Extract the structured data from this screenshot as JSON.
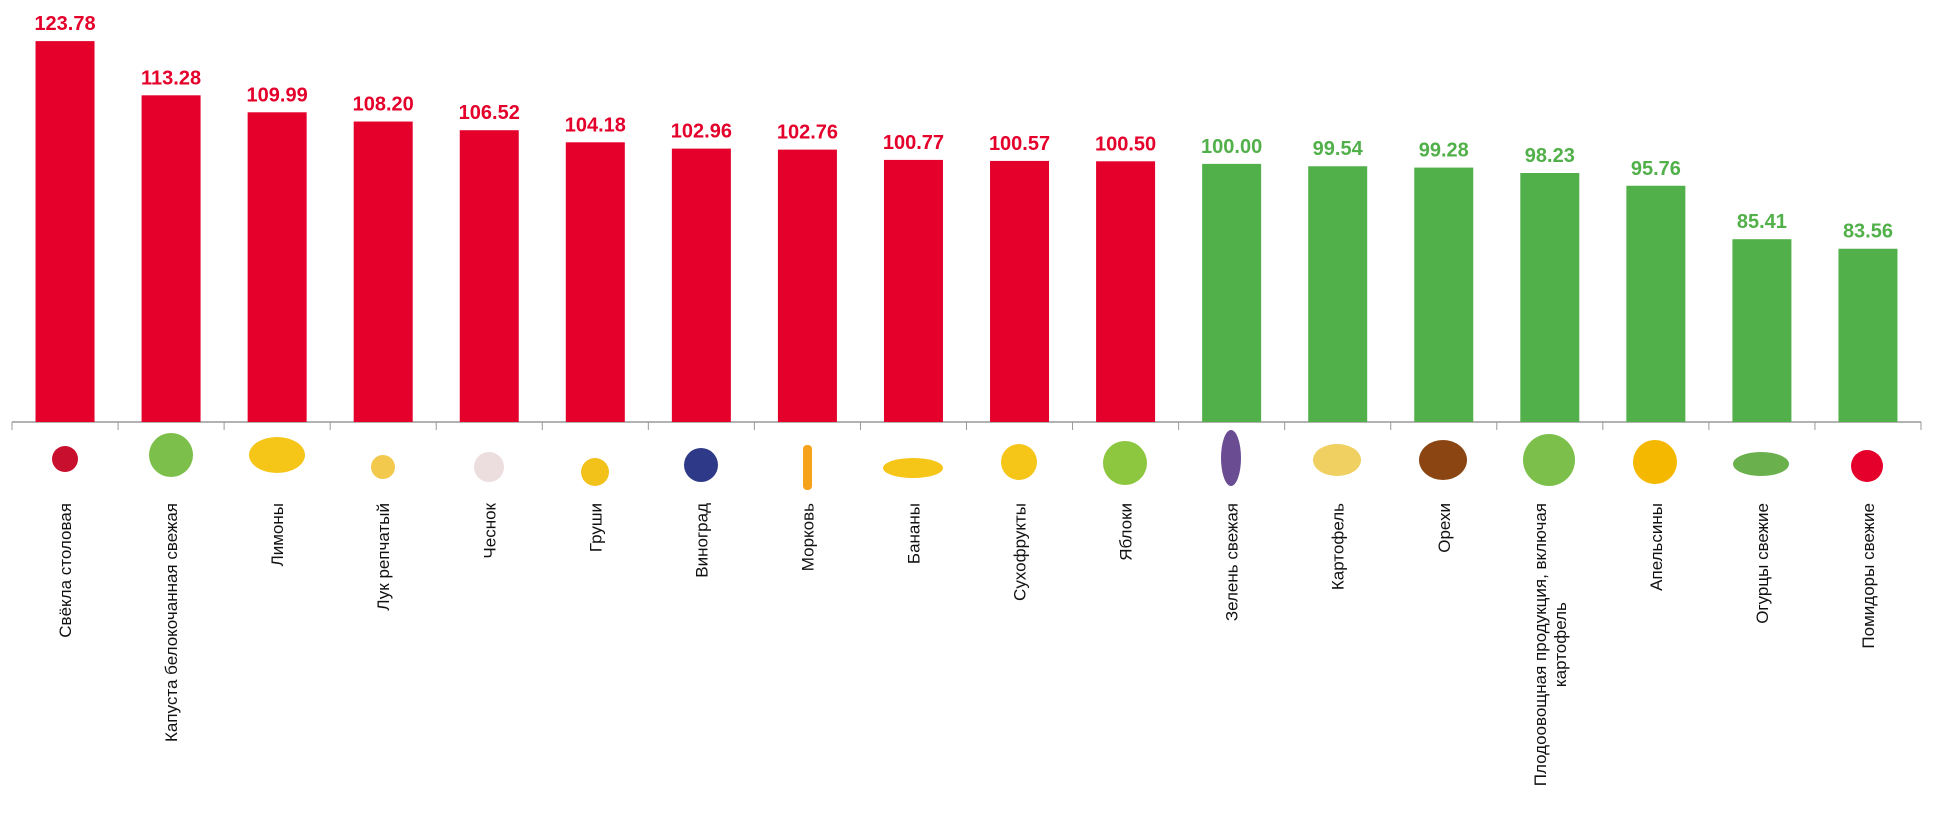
{
  "chart_data": {
    "type": "bar",
    "categories": [
      "Свёкла столовая",
      "Капуста белокочанная свежая",
      "Лимоны",
      "Лук репчатый",
      "Чеснок",
      "Груши",
      "Виноград",
      "Морковь",
      "Бананы",
      "Сухофрукты",
      "Яблоки",
      "Зелень свежая",
      "Картофель",
      "Орехи",
      "Плодоовощная продукция, включая картофель",
      "Апельсины",
      "Огурцы свежие",
      "Помидоры свежие"
    ],
    "values": [
      123.78,
      113.28,
      109.99,
      108.2,
      106.52,
      104.18,
      102.96,
      102.76,
      100.77,
      100.57,
      100.5,
      100,
      99.54,
      99.28,
      98.23,
      95.76,
      85.41,
      83.56
    ],
    "value_labels": [
      "123.78",
      "113.28",
      "109.99",
      "108.20",
      "106.52",
      "104.18",
      "102.96",
      "102.76",
      "100.77",
      "100.57",
      "100.50",
      "100.00",
      "99.54",
      "99.28",
      "98.23",
      "95.76",
      "85.41",
      "83.56"
    ],
    "colors": [
      "#e4002b",
      "#e4002b",
      "#e4002b",
      "#e4002b",
      "#e4002b",
      "#e4002b",
      "#e4002b",
      "#e4002b",
      "#e4002b",
      "#e4002b",
      "#e4002b",
      "#52b04a",
      "#52b04a",
      "#52b04a",
      "#52b04a",
      "#52b04a",
      "#52b04a",
      "#52b04a"
    ],
    "ylim": [
      50,
      130
    ]
  }
}
